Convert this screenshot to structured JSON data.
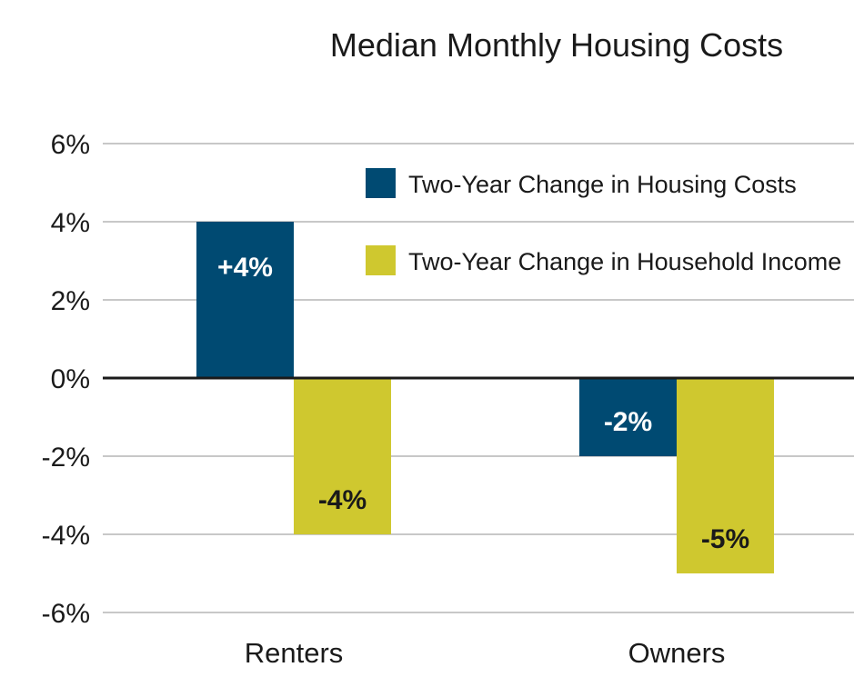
{
  "chart_data": {
    "type": "bar",
    "title": "Median Monthly Housing Costs",
    "categories": [
      "Renters",
      "Owners"
    ],
    "series": [
      {
        "name": "Two-Year Change in Housing Costs",
        "color": "#004a72",
        "values": [
          4,
          -2
        ],
        "labels": [
          "+4%",
          "-2%"
        ],
        "label_color": "#ffffff"
      },
      {
        "name": "Two-Year Change in Household Income",
        "color": "#cfc82f",
        "values": [
          -4,
          -5
        ],
        "labels": [
          "-4%",
          "-5%"
        ],
        "label_color": "#1a1a1a"
      }
    ],
    "ylim": [
      -6,
      6
    ],
    "yticks": [
      6,
      4,
      2,
      0,
      -2,
      -4,
      -6
    ],
    "ytick_labels": [
      "6%",
      "4%",
      "2%",
      "0%",
      "-2%",
      "-4%",
      "-6%"
    ],
    "grid": true,
    "legend_position": "top-right",
    "xlabel": "",
    "ylabel": ""
  }
}
